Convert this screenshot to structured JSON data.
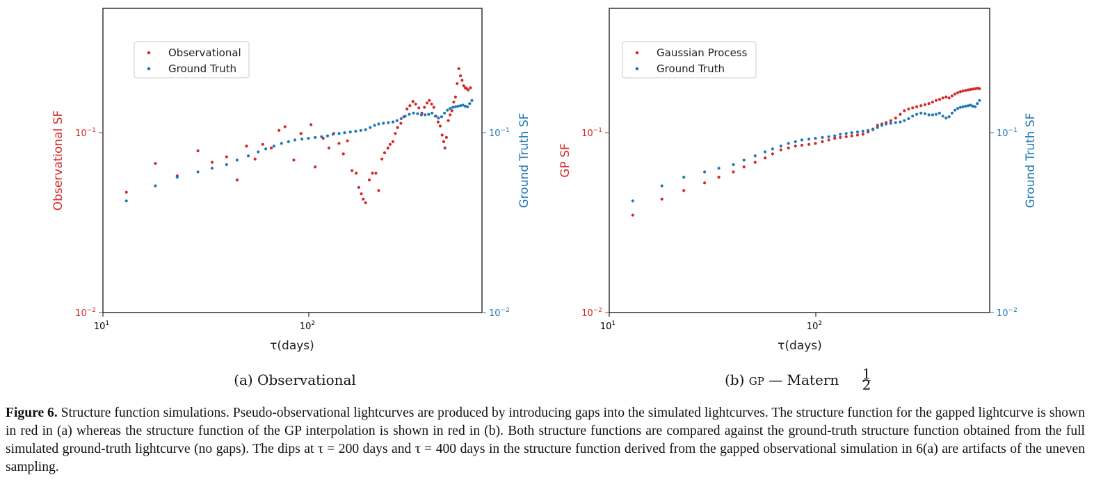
{
  "figure": {
    "caption_label": "Figure 6.",
    "caption_text": "Structure function simulations. Pseudo-observational lightcurves are produced by introducing gaps into the simulated lightcurves. The structure function for the gapped lightcurve is shown in red in (a) whereas the structure function of the GP interpolation is shown in red in (b). Both structure functions are compared against the ground-truth structure function obtained from the full simulated ground-truth lightcurve (no gaps). The dips at τ = 200 days and τ = 400 days in the structure function derived from the gapped observational simulation in 6(a) are artifacts of the uneven sampling."
  },
  "colors": {
    "red": "#d62728",
    "blue": "#1f77b4",
    "axis": "#000000"
  },
  "chart_data": [
    {
      "type": "scatter",
      "subcaption": "(a)  Observational",
      "xlabel": "τ(days)",
      "ylabel_left": "Observational SF",
      "ylabel_right": "Ground Truth SF",
      "xscale": "log",
      "yscale": "log",
      "xlim": [
        10,
        700
      ],
      "ylim": [
        0.01,
        0.5
      ],
      "x_ticks": [
        "10^1",
        "10^2"
      ],
      "y_ticks_left": [
        "10^-2",
        "10^-1"
      ],
      "y_ticks_right": [
        "10^-2",
        "10^-1"
      ],
      "grid": false,
      "legend_position": "upper-left",
      "series": [
        {
          "name": "Observational",
          "color": "#d62728",
          "axis": "left",
          "points": [
            [
              13,
              0.047
            ],
            [
              18,
              0.068
            ],
            [
              23,
              0.058
            ],
            [
              29,
              0.08
            ],
            [
              34,
              0.069
            ],
            [
              40,
              0.074
            ],
            [
              45,
              0.055
            ],
            [
              50,
              0.085
            ],
            [
              55,
              0.072
            ],
            [
              60,
              0.087
            ],
            [
              66,
              0.083
            ],
            [
              72,
              0.104
            ],
            [
              77,
              0.109
            ],
            [
              85,
              0.071
            ],
            [
              92,
              0.1
            ],
            [
              103,
              0.112
            ],
            [
              108,
              0.065
            ],
            [
              118,
              0.094
            ],
            [
              126,
              0.083
            ],
            [
              133,
              0.1
            ],
            [
              141,
              0.088
            ],
            [
              148,
              0.077
            ],
            [
              155,
              0.091
            ],
            [
              163,
              0.062
            ],
            [
              171,
              0.06
            ],
            [
              176,
              0.05
            ],
            [
              181,
              0.046
            ],
            [
              185,
              0.043
            ],
            [
              190,
              0.041
            ],
            [
              198,
              0.055
            ],
            [
              205,
              0.06
            ],
            [
              213,
              0.06
            ],
            [
              220,
              0.048
            ],
            [
              228,
              0.072
            ],
            [
              235,
              0.078
            ],
            [
              244,
              0.083
            ],
            [
              250,
              0.087
            ],
            [
              258,
              0.09
            ],
            [
              265,
              0.1
            ],
            [
              272,
              0.108
            ],
            [
              282,
              0.114
            ],
            [
              292,
              0.124
            ],
            [
              302,
              0.137
            ],
            [
              312,
              0.143
            ],
            [
              323,
              0.151
            ],
            [
              333,
              0.146
            ],
            [
              345,
              0.139
            ],
            [
              357,
              0.13
            ],
            [
              367,
              0.14
            ],
            [
              378,
              0.148
            ],
            [
              388,
              0.153
            ],
            [
              398,
              0.146
            ],
            [
              408,
              0.14
            ],
            [
              418,
              0.125
            ],
            [
              428,
              0.116
            ],
            [
              438,
              0.11
            ],
            [
              448,
              0.098
            ],
            [
              456,
              0.09
            ],
            [
              462,
              0.083
            ],
            [
              470,
              0.095
            ],
            [
              480,
              0.118
            ],
            [
              490,
              0.127
            ],
            [
              500,
              0.134
            ],
            [
              510,
              0.15
            ],
            [
              520,
              0.16
            ],
            [
              530,
              0.19
            ],
            [
              540,
              0.23
            ],
            [
              550,
              0.21
            ],
            [
              560,
              0.198
            ],
            [
              570,
              0.185
            ],
            [
              580,
              0.18
            ],
            [
              590,
              0.178
            ],
            [
              600,
              0.175
            ],
            [
              615,
              0.18
            ]
          ]
        },
        {
          "name": "Ground Truth",
          "color": "#1f77b4",
          "axis": "right",
          "points": [
            [
              13,
              0.042
            ],
            [
              18,
              0.051
            ],
            [
              23,
              0.057
            ],
            [
              29,
              0.061
            ],
            [
              34,
              0.064
            ],
            [
              40,
              0.067
            ],
            [
              45,
              0.071
            ],
            [
              51,
              0.075
            ],
            [
              57,
              0.079
            ],
            [
              62,
              0.082
            ],
            [
              68,
              0.085
            ],
            [
              74,
              0.088
            ],
            [
              80,
              0.09
            ],
            [
              86,
              0.092
            ],
            [
              93,
              0.093
            ],
            [
              100,
              0.094
            ],
            [
              108,
              0.095
            ],
            [
              116,
              0.096
            ],
            [
              124,
              0.097
            ],
            [
              132,
              0.099
            ],
            [
              141,
              0.1
            ],
            [
              150,
              0.101
            ],
            [
              160,
              0.102
            ],
            [
              170,
              0.103
            ],
            [
              180,
              0.104
            ],
            [
              190,
              0.105
            ],
            [
              200,
              0.108
            ],
            [
              210,
              0.111
            ],
            [
              220,
              0.113
            ],
            [
              232,
              0.114
            ],
            [
              245,
              0.115
            ],
            [
              258,
              0.116
            ],
            [
              270,
              0.118
            ],
            [
              283,
              0.121
            ],
            [
              296,
              0.125
            ],
            [
              310,
              0.128
            ],
            [
              325,
              0.13
            ],
            [
              340,
              0.129
            ],
            [
              355,
              0.127
            ],
            [
              370,
              0.127
            ],
            [
              385,
              0.128
            ],
            [
              400,
              0.13
            ],
            [
              415,
              0.125
            ],
            [
              430,
              0.122
            ],
            [
              445,
              0.124
            ],
            [
              460,
              0.13
            ],
            [
              475,
              0.135
            ],
            [
              490,
              0.138
            ],
            [
              505,
              0.14
            ],
            [
              520,
              0.141
            ],
            [
              535,
              0.142
            ],
            [
              550,
              0.143
            ],
            [
              565,
              0.144
            ],
            [
              580,
              0.142
            ],
            [
              595,
              0.141
            ],
            [
              610,
              0.147
            ],
            [
              625,
              0.153
            ]
          ]
        }
      ]
    },
    {
      "type": "scatter",
      "subcaption_prefix": "(b)  ",
      "subcaption_gp": "GP",
      "subcaption_suffix": " — Matern ",
      "subcaption_num": "1",
      "subcaption_den": "2",
      "xlabel": "τ(days)",
      "ylabel_left": "GP SF",
      "ylabel_right": "Ground Truth SF",
      "xscale": "log",
      "yscale": "log",
      "xlim": [
        10,
        700
      ],
      "ylim": [
        0.01,
        0.5
      ],
      "x_ticks": [
        "10^1",
        "10^2"
      ],
      "y_ticks_left": [
        "10^-2",
        "10^-1"
      ],
      "y_ticks_right": [
        "10^-2",
        "10^-1"
      ],
      "grid": false,
      "legend_position": "upper-left",
      "series": [
        {
          "name": "Gaussian Process",
          "color": "#d62728",
          "axis": "left",
          "points": [
            [
              13,
              0.035
            ],
            [
              18,
              0.043
            ],
            [
              23,
              0.048
            ],
            [
              29,
              0.053
            ],
            [
              34,
              0.057
            ],
            [
              40,
              0.061
            ],
            [
              45,
              0.065
            ],
            [
              51,
              0.069
            ],
            [
              57,
              0.073
            ],
            [
              62,
              0.077
            ],
            [
              68,
              0.081
            ],
            [
              74,
              0.083
            ],
            [
              80,
              0.085
            ],
            [
              86,
              0.086
            ],
            [
              93,
              0.087
            ],
            [
              100,
              0.088
            ],
            [
              108,
              0.09
            ],
            [
              116,
              0.092
            ],
            [
              124,
              0.094
            ],
            [
              132,
              0.095
            ],
            [
              141,
              0.096
            ],
            [
              150,
              0.097
            ],
            [
              160,
              0.098
            ],
            [
              170,
              0.099
            ],
            [
              180,
              0.102
            ],
            [
              190,
              0.106
            ],
            [
              200,
              0.111
            ],
            [
              210,
              0.113
            ],
            [
              220,
              0.115
            ],
            [
              232,
              0.118
            ],
            [
              245,
              0.122
            ],
            [
              258,
              0.128
            ],
            [
              270,
              0.134
            ],
            [
              283,
              0.137
            ],
            [
              296,
              0.139
            ],
            [
              310,
              0.141
            ],
            [
              325,
              0.143
            ],
            [
              340,
              0.145
            ],
            [
              355,
              0.147
            ],
            [
              370,
              0.15
            ],
            [
              385,
              0.153
            ],
            [
              400,
              0.155
            ],
            [
              415,
              0.158
            ],
            [
              430,
              0.16
            ],
            [
              445,
              0.158
            ],
            [
              460,
              0.162
            ],
            [
              475,
              0.166
            ],
            [
              490,
              0.169
            ],
            [
              505,
              0.171
            ],
            [
              520,
              0.173
            ],
            [
              535,
              0.174
            ],
            [
              550,
              0.175
            ],
            [
              565,
              0.176
            ],
            [
              580,
              0.177
            ],
            [
              595,
              0.178
            ],
            [
              610,
              0.179
            ],
            [
              625,
              0.178
            ]
          ]
        },
        {
          "name": "Ground Truth",
          "color": "#1f77b4",
          "axis": "right",
          "points": [
            [
              13,
              0.042
            ],
            [
              18,
              0.051
            ],
            [
              23,
              0.057
            ],
            [
              29,
              0.061
            ],
            [
              34,
              0.064
            ],
            [
              40,
              0.067
            ],
            [
              45,
              0.071
            ],
            [
              51,
              0.075
            ],
            [
              57,
              0.079
            ],
            [
              62,
              0.082
            ],
            [
              68,
              0.085
            ],
            [
              74,
              0.088
            ],
            [
              80,
              0.09
            ],
            [
              86,
              0.092
            ],
            [
              93,
              0.093
            ],
            [
              100,
              0.094
            ],
            [
              108,
              0.095
            ],
            [
              116,
              0.096
            ],
            [
              124,
              0.097
            ],
            [
              132,
              0.099
            ],
            [
              141,
              0.1
            ],
            [
              150,
              0.101
            ],
            [
              160,
              0.102
            ],
            [
              170,
              0.103
            ],
            [
              180,
              0.104
            ],
            [
              190,
              0.105
            ],
            [
              200,
              0.108
            ],
            [
              210,
              0.111
            ],
            [
              220,
              0.113
            ],
            [
              232,
              0.114
            ],
            [
              245,
              0.115
            ],
            [
              258,
              0.116
            ],
            [
              270,
              0.118
            ],
            [
              283,
              0.121
            ],
            [
              296,
              0.125
            ],
            [
              310,
              0.128
            ],
            [
              325,
              0.13
            ],
            [
              340,
              0.129
            ],
            [
              355,
              0.127
            ],
            [
              370,
              0.127
            ],
            [
              385,
              0.128
            ],
            [
              400,
              0.13
            ],
            [
              415,
              0.125
            ],
            [
              430,
              0.122
            ],
            [
              445,
              0.124
            ],
            [
              460,
              0.13
            ],
            [
              475,
              0.135
            ],
            [
              490,
              0.138
            ],
            [
              505,
              0.14
            ],
            [
              520,
              0.141
            ],
            [
              535,
              0.142
            ],
            [
              550,
              0.143
            ],
            [
              565,
              0.144
            ],
            [
              580,
              0.142
            ],
            [
              595,
              0.141
            ],
            [
              610,
              0.147
            ],
            [
              625,
              0.153
            ]
          ]
        }
      ]
    }
  ]
}
